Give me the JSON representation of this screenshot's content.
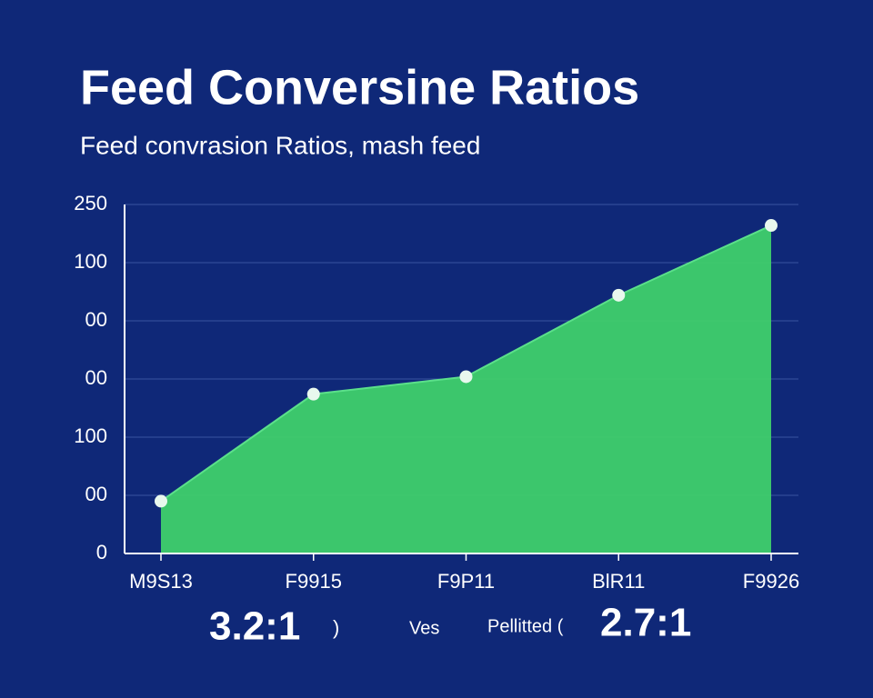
{
  "chart_data": {
    "type": "area",
    "title": "Feed Conversine Ratios",
    "subtitle": "Feed convrasion Ratios, mash feed",
    "categories": [
      "M9S13",
      "F9915",
      "F9P11",
      "BlR11",
      "F9926"
    ],
    "values": [
      45,
      137,
      152,
      222,
      282
    ],
    "color": "#3fcf6b",
    "ylim": [
      0,
      300
    ],
    "yticks": [
      0,
      {
        "value": 50,
        "label": "00"
      },
      100,
      {
        "value": 150,
        "label": "00"
      },
      {
        "value": 200,
        "label": "00"
      },
      {
        "value": 250,
        "label": "100"
      },
      {
        "value": 300,
        "label": "250"
      }
    ],
    "grid": true,
    "annotations": [
      "3.2:1",
      ")",
      "Ves",
      "Pellitted (",
      "2.7:1"
    ]
  }
}
